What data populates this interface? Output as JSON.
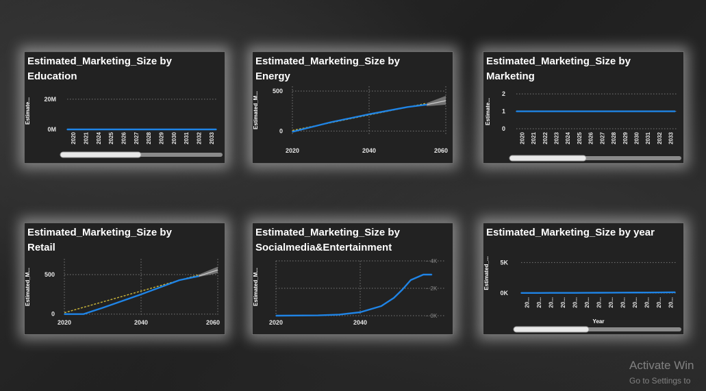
{
  "colors": {
    "line": "#1f84e6",
    "trend": "#c6b23a",
    "band": "#8c8c8c"
  },
  "watermark": {
    "line1": "Activate Win",
    "line2": "Go to Settings to"
  },
  "chart_data": [
    {
      "id": "education",
      "type": "line",
      "title": "Estimated_Marketing_Size by\nEducation",
      "ylabel": "Estimate...",
      "x": [
        "2020",
        "2021",
        "2024",
        "2025",
        "2026",
        "2027",
        "2028",
        "2029",
        "2030",
        "2031",
        "2032",
        "2033"
      ],
      "series": [
        {
          "values": [
            0,
            0,
            0,
            0,
            0,
            0,
            0,
            0,
            0,
            0,
            0,
            0
          ]
        }
      ],
      "ylim": [
        0,
        24000000
      ],
      "yticks": [
        {
          "v": 0,
          "label": "0M"
        },
        {
          "v": 20000000,
          "label": "20M"
        }
      ],
      "grid": true,
      "legend": "none"
    },
    {
      "id": "energy",
      "type": "line",
      "title": "Estimated_Marketing_Size by\nEnergy",
      "ylabel": "Estimated_M...",
      "x": [
        2020,
        2030,
        2040,
        2050,
        2055
      ],
      "series": [
        {
          "values": [
            -10,
            110,
            210,
            300,
            330
          ]
        }
      ],
      "forecast": {
        "x": [
          2055,
          2060
        ],
        "values": [
          330,
          380
        ],
        "lower": [
          310,
          330
        ],
        "upper": [
          350,
          440
        ]
      },
      "ylim": [
        -40,
        560
      ],
      "xticks": [
        2020,
        2040,
        2060
      ],
      "yticks": [
        {
          "v": 0,
          "label": "0"
        },
        {
          "v": 500,
          "label": "500"
        }
      ],
      "grid": true,
      "legend": "none",
      "trend_line": true
    },
    {
      "id": "marketing",
      "type": "line",
      "title": "Estimated_Marketing_Size by\nMarketing",
      "ylabel": "Estimate...",
      "x": [
        "2020",
        "2021",
        "2022",
        "2023",
        "2024",
        "2025",
        "2026",
        "2027",
        "2028",
        "2029",
        "2030",
        "2031",
        "2032",
        "2033"
      ],
      "series": [
        {
          "values": [
            1,
            1,
            1,
            1,
            1,
            1,
            1,
            1,
            1,
            1,
            1,
            1,
            1,
            1
          ]
        }
      ],
      "ylim": [
        0,
        2.2
      ],
      "yticks": [
        {
          "v": 0,
          "label": "0"
        },
        {
          "v": 1,
          "label": "1"
        },
        {
          "v": 2,
          "label": "2"
        }
      ],
      "grid": true,
      "legend": "none"
    },
    {
      "id": "retail",
      "type": "line",
      "title": "Estimated_Marketing_Size by\nRetail",
      "ylabel": "Estimated_M...",
      "x": [
        2020,
        2025,
        2030,
        2040,
        2050,
        2055
      ],
      "series": [
        {
          "values": [
            0,
            0,
            80,
            250,
            430,
            480
          ]
        }
      ],
      "forecast": {
        "x": [
          2055,
          2060
        ],
        "values": [
          480,
          560
        ],
        "lower": [
          470,
          520
        ],
        "upper": [
          500,
          600
        ]
      },
      "ylim": [
        -20,
        700
      ],
      "xticks": [
        2020,
        2040,
        2060
      ],
      "yticks": [
        {
          "v": 0,
          "label": "0"
        },
        {
          "v": 500,
          "label": "500"
        }
      ],
      "grid": true,
      "legend": "none",
      "trend_line": true
    },
    {
      "id": "socialmedia",
      "type": "line",
      "title": "Estimated_Marketing_Size by\nSocialmedia&Entertainment",
      "ylabel": "Estimated_M...",
      "x": [
        2020,
        2030,
        2035,
        2040,
        2045,
        2048,
        2050,
        2052,
        2055,
        2057
      ],
      "series": [
        {
          "values": [
            0,
            20,
            80,
            250,
            700,
            1300,
            1900,
            2600,
            3000,
            3000
          ]
        }
      ],
      "ylim": [
        0,
        4000
      ],
      "xticks": [
        2020,
        2040
      ],
      "yticks_right": [
        {
          "v": 0,
          "label": "0K"
        },
        {
          "v": 2000,
          "label": "2K"
        },
        {
          "v": 4000,
          "label": "4K"
        }
      ],
      "grid": true,
      "legend": "none"
    },
    {
      "id": "year",
      "type": "line",
      "title": "Estimated_Marketing_Size by year",
      "ylabel": "Estimated_...",
      "xlabel": "Year",
      "x": [
        "20...",
        "20...",
        "20...",
        "20...",
        "20...",
        "20...",
        "20...",
        "20...",
        "20...",
        "20...",
        "20...",
        "20...",
        "20..."
      ],
      "series": [
        {
          "values": [
            20,
            25,
            30,
            35,
            40,
            45,
            55,
            65,
            75,
            85,
            95,
            110,
            130
          ]
        }
      ],
      "ylim": [
        0,
        6500
      ],
      "yticks": [
        {
          "v": 0,
          "label": "0K"
        },
        {
          "v": 5000,
          "label": "5K"
        }
      ],
      "grid": true,
      "legend": "none"
    }
  ]
}
